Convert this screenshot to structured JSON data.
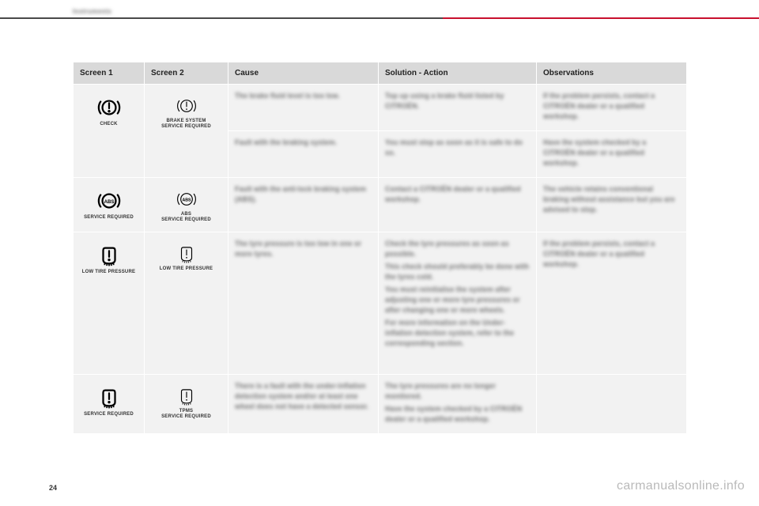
{
  "section_label": "Instruments",
  "page_number": "24",
  "watermark": "carmanualsonline.info",
  "accent_color": "#c8102e",
  "rule_color": "#4a4a4a",
  "header_bg": "#d9d9d9",
  "cell_bg": "#f2f2f2",
  "text_color": "#222222",
  "columns": [
    "Screen 1",
    "Screen 2",
    "Cause",
    "Solution - Action",
    "Observations"
  ],
  "icons": {
    "brake_check": {
      "type": "brake",
      "style": "bold",
      "label": "CHECK"
    },
    "brake_service": {
      "type": "brake",
      "style": "thin",
      "label": "BRAKE SYSTEM\nSERVICE REQUIRED"
    },
    "abs_service1": {
      "type": "abs",
      "style": "bold",
      "label": "SERVICE REQUIRED"
    },
    "abs_service2": {
      "type": "abs",
      "style": "thin",
      "label": "ABS\nSERVICE REQUIRED"
    },
    "tyre_low1": {
      "type": "tyre",
      "style": "bold",
      "label": "LOW TIRE PRESSURE"
    },
    "tyre_low2": {
      "type": "tyre",
      "style": "thin",
      "label": "LOW TIRE PRESSURE"
    },
    "tpms1": {
      "type": "tyre",
      "style": "bold",
      "label": "SERVICE REQUIRED"
    },
    "tpms2": {
      "type": "tyre",
      "style": "thin",
      "label": "TPMS\nSERVICE REQUIRED"
    }
  },
  "rows": [
    {
      "screen1": "brake_check",
      "screen2": "brake_service",
      "screen_rowspan": 2,
      "cause": "The brake fluid level is too low.",
      "solution": "Top up using a brake fluid listed by CITROËN.",
      "observation": "If the problem persists, contact a CITROËN dealer or a qualified workshop."
    },
    {
      "cause": "Fault with the braking system.",
      "solution": "You must stop as soon as it is safe to do so.",
      "observation": "Have the system checked by a CITROËN dealer or a qualified workshop."
    },
    {
      "screen1": "abs_service1",
      "screen2": "abs_service2",
      "cause": "Fault with the anti-lock braking system (ABS).",
      "solution": "Contact a CITROËN dealer or a qualified workshop.",
      "observation": "The vehicle retains conventional braking without assistance but you are advised to stop."
    },
    {
      "screen1": "tyre_low1",
      "screen2": "tyre_low2",
      "tall": true,
      "cause": "The tyre pressure is too low in one or more tyres.",
      "solution": "Check the tyre pressures as soon as possible.\nThis check should preferably be done with the tyres cold.\nYou must reinitialise the system after adjusting one or more tyre pressures or after changing one or more wheels.\nFor more information on the Under-inflation detection system, refer to the corresponding section.",
      "observation": "If the problem persists, contact a CITROËN dealer or a qualified workshop."
    },
    {
      "screen1": "tpms1",
      "screen2": "tpms2",
      "cause": "There is a fault with the under-inflation detection system and/or at least one wheel does not have a detected sensor.",
      "solution": "The tyre pressures are no longer monitored.\nHave the system checked by a CITROËN dealer or a qualified workshop.",
      "observation": ""
    }
  ]
}
